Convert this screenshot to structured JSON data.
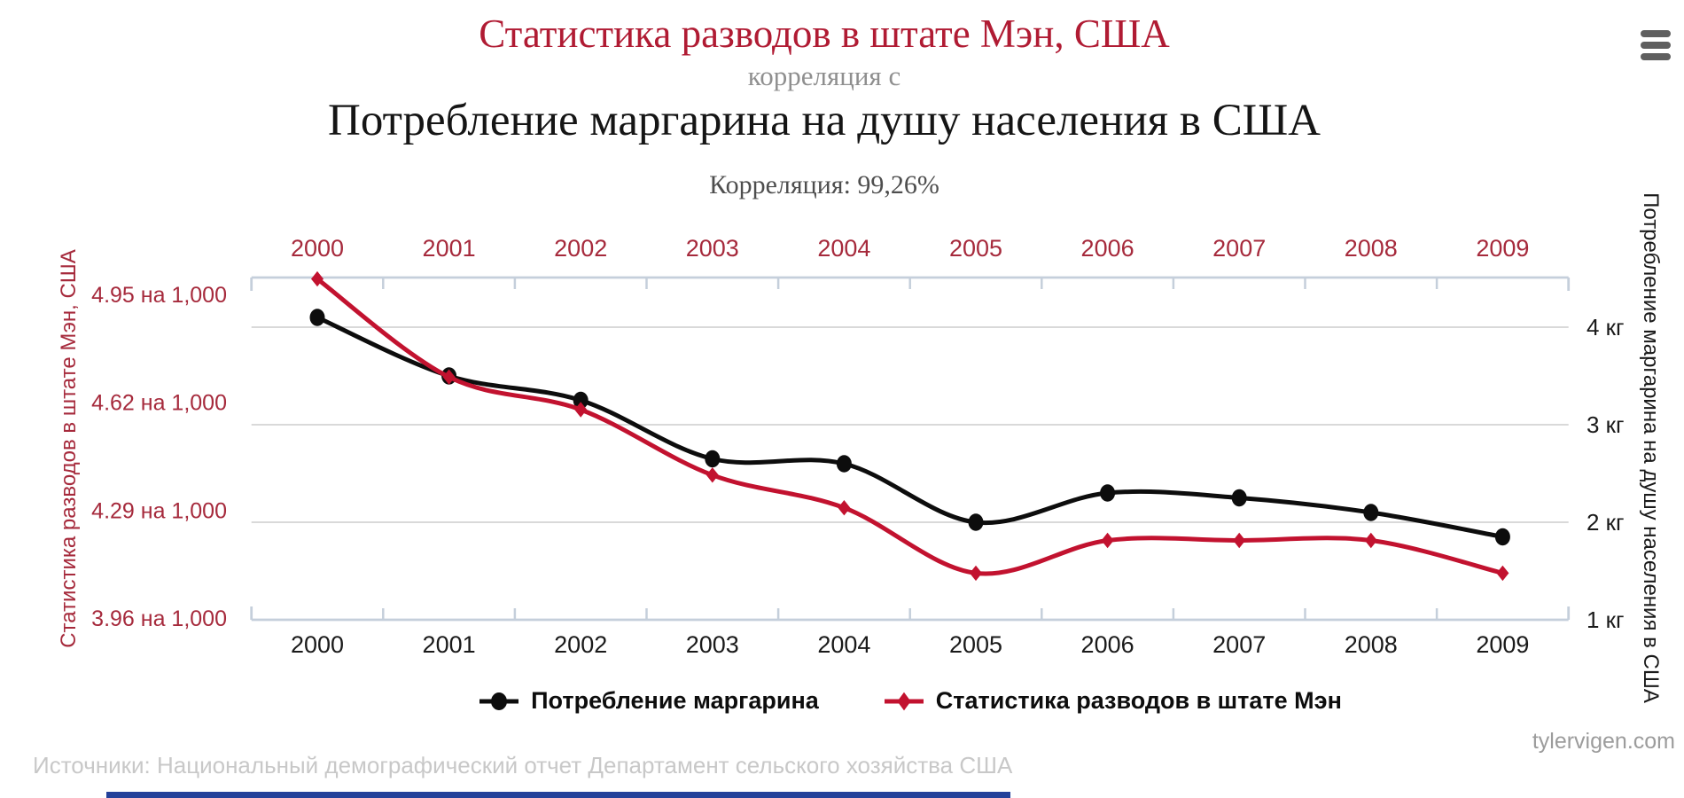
{
  "header": {
    "title_top": "Статистика разводов в штате Мэн, США",
    "connector": "корреляция с",
    "title_main": "Потребление маргарина на душу населения в США",
    "correlation": "Корреляция: 99,26%"
  },
  "chart_data": {
    "type": "line",
    "x": [
      2000,
      2001,
      2002,
      2003,
      2004,
      2005,
      2006,
      2007,
      2008,
      2009
    ],
    "series": [
      {
        "name": "Потребление маргарина",
        "axis": "right",
        "units": "кг",
        "marker": "circle",
        "color": "#0d0d0d",
        "values": [
          4.1,
          3.5,
          3.25,
          2.65,
          2.6,
          2.0,
          2.3,
          2.25,
          2.1,
          1.85
        ]
      },
      {
        "name": "Статистика разводов в штате Мэн",
        "axis": "left",
        "units": "на 1,000",
        "marker": "diamond",
        "color": "#c2122f",
        "values": [
          5.0,
          4.7,
          4.6,
          4.4,
          4.3,
          4.1,
          4.2,
          4.2,
          4.2,
          4.1
        ]
      }
    ],
    "left_axis": {
      "title": "Статистика разводов в штате Мэн, США",
      "tick_labels": [
        "4.95 на 1,000",
        "4.62 на 1,000",
        "4.29 на 1,000",
        "3.96 на 1,000"
      ],
      "tick_values": [
        4.95,
        4.62,
        4.29,
        3.96
      ]
    },
    "right_axis": {
      "title": "Потребление маргарина на душу населения в США",
      "tick_labels": [
        "4 кг",
        "3 кг",
        "2 кг",
        "1 кг"
      ],
      "tick_values": [
        4,
        3,
        2,
        1
      ]
    },
    "grid": true,
    "legend_position": "bottom"
  },
  "footer": {
    "sources": "Источники: Национальный демографический отчет Департамент сельского хозяйства США",
    "site": "tylervigen.com"
  },
  "icons": {
    "menu": "hamburger-icon"
  },
  "colors": {
    "title_red": "#b01b33",
    "line_red": "#c2122f",
    "line_black": "#0d0d0d",
    "axis_label_red": "#a62a3c",
    "axis_line": "#c5cfdb",
    "gridline": "#d9d9d9",
    "connector_gray": "#8f8f8f",
    "correlation_text": "#4e4e4e",
    "year_label_black": "#1a1a1a",
    "footer_gray": "#c8c8c8",
    "site_gray": "#9c9c9c",
    "menu_gray": "#5f5f5f",
    "bottom_bar_blue": "#24419a"
  }
}
